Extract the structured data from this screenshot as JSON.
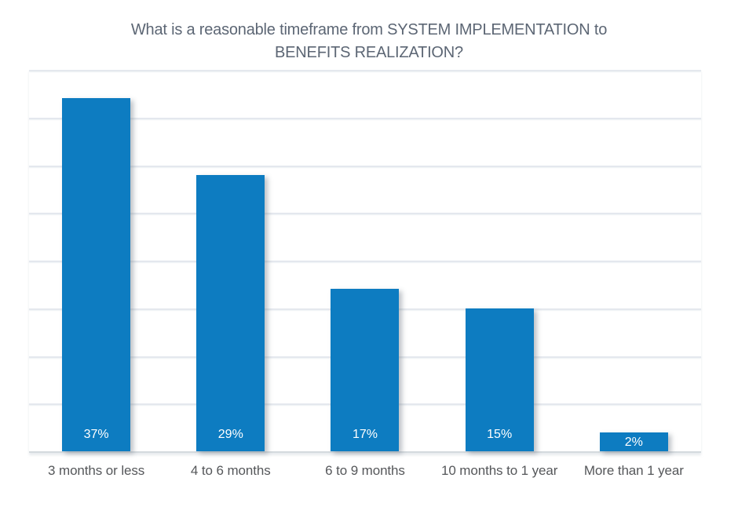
{
  "chart_data": {
    "type": "bar",
    "title": "What is a reasonable timeframe from SYSTEM IMPLEMENTATION to BENEFITS REALIZATION?",
    "categories": [
      "3 months or less",
      "4 to 6 months",
      "6 to 9 months",
      "10 months to 1 year",
      "More than 1 year"
    ],
    "values": [
      37,
      29,
      17,
      15,
      2
    ],
    "value_labels": [
      "37%",
      "29%",
      "17%",
      "15%",
      "2%"
    ],
    "xlabel": "",
    "ylabel": "",
    "ylim": [
      0,
      40
    ],
    "gridline_step_percent": 5,
    "grid": true,
    "legend_position": "none",
    "bar_color": "#0d7cc1",
    "bar_value_label_color": "#ffffff",
    "title_color": "#5c6674",
    "category_label_color": "#55575a",
    "gridline_color": "#e4e8ee",
    "axis_line_color": "#d4dade"
  }
}
